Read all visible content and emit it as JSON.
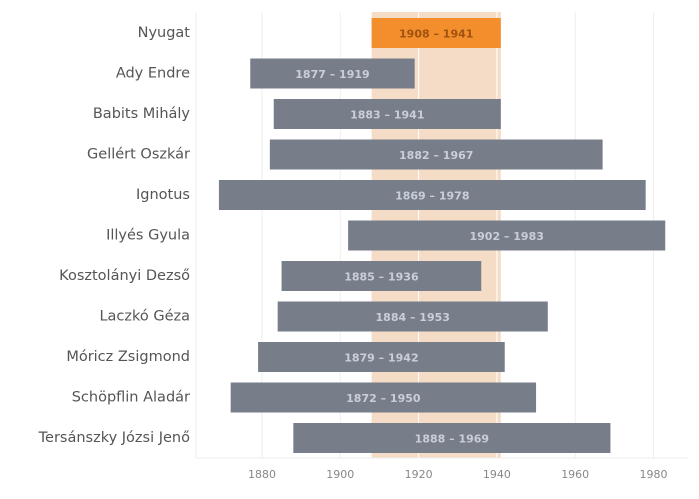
{
  "chart_data": {
    "type": "gantt",
    "title": "",
    "xlabel": "",
    "ylabel": "",
    "xlim": [
      1865,
      1988
    ],
    "xticks": [
      1880,
      1900,
      1920,
      1940,
      1960,
      1980
    ],
    "grid": true,
    "highlight_band": {
      "start": 1908,
      "end": 1941
    },
    "rows": [
      {
        "name": "Nyugat",
        "start": 1908,
        "end": 1941,
        "label": "1908 – 1941",
        "highlight": true
      },
      {
        "name": "Ady Endre",
        "start": 1877,
        "end": 1919,
        "label": "1877 – 1919"
      },
      {
        "name": "Babits Mihály",
        "start": 1883,
        "end": 1941,
        "label": "1883 – 1941"
      },
      {
        "name": "Gellért Oszkár",
        "start": 1882,
        "end": 1967,
        "label": "1882 – 1967"
      },
      {
        "name": "Ignotus",
        "start": 1869,
        "end": 1978,
        "label": "1869 – 1978"
      },
      {
        "name": "Illyés Gyula",
        "start": 1902,
        "end": 1983,
        "label": "1902 – 1983"
      },
      {
        "name": "Kosztolányi Dezső",
        "start": 1885,
        "end": 1936,
        "label": "1885 – 1936"
      },
      {
        "name": "Laczkó Géza",
        "start": 1884,
        "end": 1953,
        "label": "1884 – 1953"
      },
      {
        "name": "Móricz Zsigmond",
        "start": 1879,
        "end": 1942,
        "label": "1879 – 1942"
      },
      {
        "name": "Schöpflin Aladár",
        "start": 1872,
        "end": 1950,
        "label": "1872 – 1950"
      },
      {
        "name": "Tersánszky Józsi Jenő",
        "start": 1888,
        "end": 1969,
        "label": "1888 – 1969"
      }
    ]
  },
  "colors": {
    "bar": "#777e8a",
    "bar_text": "#c9ced8",
    "highlight_bar": "#f28e2b",
    "highlight_text": "#a0520f",
    "band": "#f5dcc6",
    "grid": "#eeeeee"
  }
}
